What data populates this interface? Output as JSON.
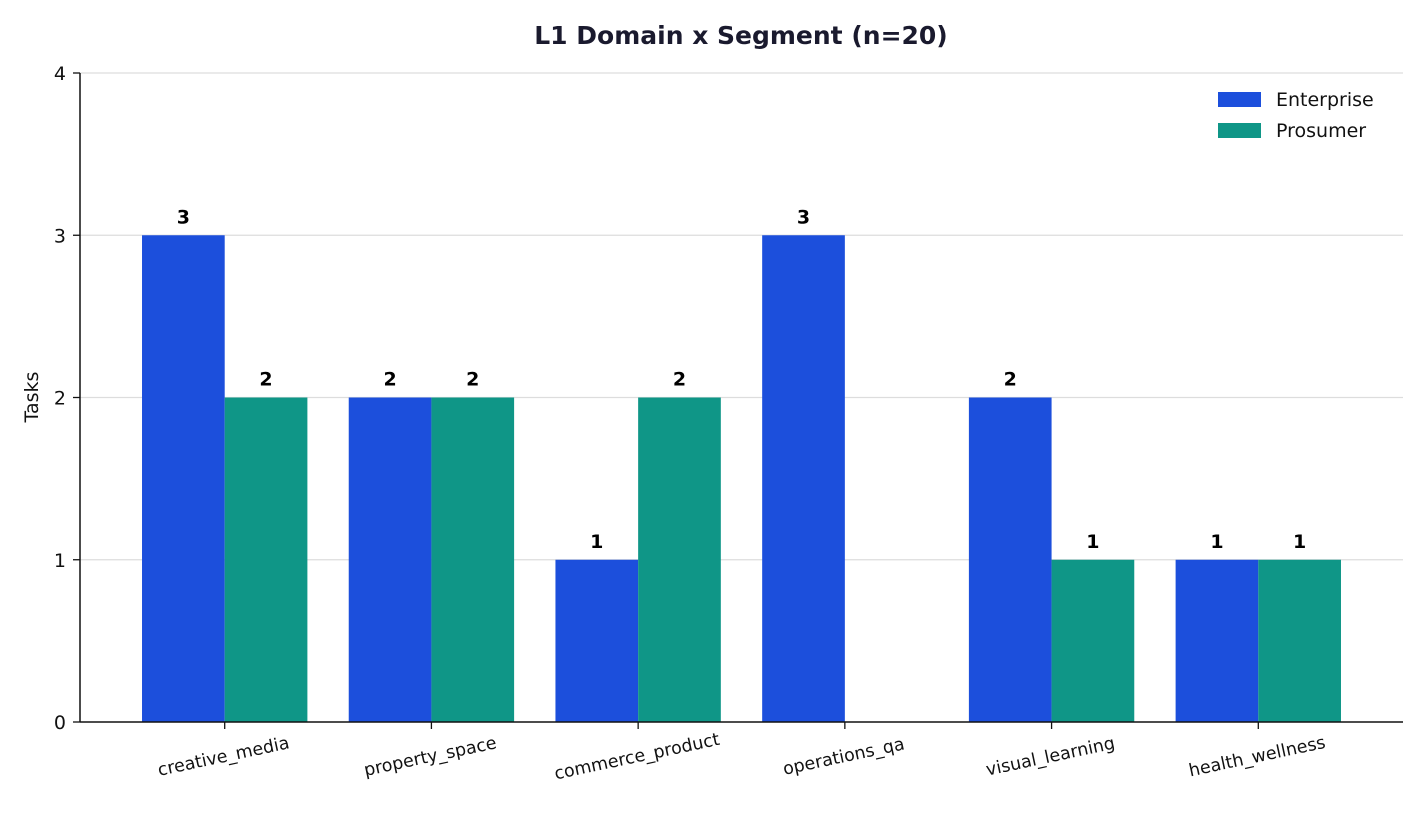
{
  "chart_data": {
    "type": "bar",
    "title": "L1 Domain x Segment  (n=20)",
    "xlabel": "",
    "ylabel": "Tasks",
    "ylim": [
      0,
      4
    ],
    "yticks": [
      0,
      1,
      2,
      3,
      4
    ],
    "grid": "horizontal",
    "legend_position": "top-right",
    "categories": [
      "creative_media",
      "property_space",
      "commerce_product",
      "operations_qa",
      "visual_learning",
      "health_wellness"
    ],
    "series": [
      {
        "name": "Enterprise",
        "color": "#1c4fdc",
        "values": [
          3,
          2,
          1,
          3,
          2,
          1
        ]
      },
      {
        "name": "Prosumer",
        "color": "#0f9687",
        "values": [
          2,
          2,
          2,
          0,
          1,
          1
        ]
      }
    ]
  }
}
